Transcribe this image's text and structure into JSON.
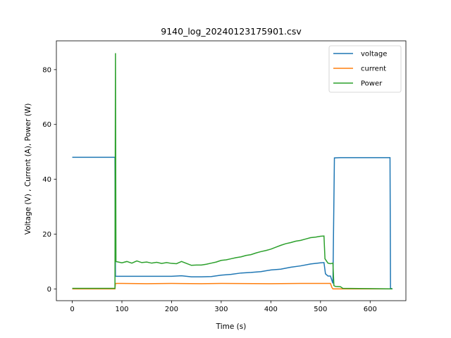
{
  "chart_data": {
    "type": "line",
    "title": "9140_log_20240123175901.csv",
    "xlabel": "Time (s)",
    "ylabel": "Voltage (V) , Current (A), Power (W)",
    "xlim": [
      -32,
      672
    ],
    "ylim": [
      -4.3,
      90.5
    ],
    "xticks": [
      0,
      100,
      200,
      300,
      400,
      500,
      600
    ],
    "yticks": [
      0,
      20,
      40,
      60,
      80
    ],
    "grid": false,
    "legend_position": "top-right",
    "series": [
      {
        "name": "voltage",
        "color": "#1f77b4",
        "points": [
          [
            0,
            48
          ],
          [
            86,
            48
          ],
          [
            87,
            4.6
          ],
          [
            100,
            4.6
          ],
          [
            150,
            4.6
          ],
          [
            200,
            4.6
          ],
          [
            220,
            4.8
          ],
          [
            240,
            4.4
          ],
          [
            260,
            4.4
          ],
          [
            280,
            4.5
          ],
          [
            300,
            5
          ],
          [
            320,
            5.3
          ],
          [
            340,
            5.8
          ],
          [
            360,
            6
          ],
          [
            380,
            6.3
          ],
          [
            400,
            6.9
          ],
          [
            420,
            7.2
          ],
          [
            440,
            7.9
          ],
          [
            460,
            8.4
          ],
          [
            480,
            9.1
          ],
          [
            500,
            9.5
          ],
          [
            507,
            9.6
          ],
          [
            510,
            5.5
          ],
          [
            515,
            4.7
          ],
          [
            520,
            4.7
          ],
          [
            525,
            2
          ],
          [
            528,
            47.8
          ],
          [
            540,
            47.9
          ],
          [
            600,
            47.9
          ],
          [
            640,
            47.9
          ],
          [
            641,
            0.2
          ],
          [
            645,
            0
          ]
        ]
      },
      {
        "name": "current",
        "color": "#ff7f0e",
        "points": [
          [
            0,
            0
          ],
          [
            86,
            0
          ],
          [
            87,
            2
          ],
          [
            100,
            2
          ],
          [
            150,
            1.9
          ],
          [
            200,
            2
          ],
          [
            260,
            1.9
          ],
          [
            300,
            2
          ],
          [
            400,
            1.9
          ],
          [
            460,
            2
          ],
          [
            520,
            2
          ],
          [
            523,
            0.5
          ],
          [
            525,
            0
          ],
          [
            645,
            0
          ]
        ]
      },
      {
        "name": "Power",
        "color": "#2ca02c",
        "points": [
          [
            0,
            0.2
          ],
          [
            86,
            0.2
          ],
          [
            87,
            86
          ],
          [
            88,
            10
          ],
          [
            100,
            9.5
          ],
          [
            110,
            10
          ],
          [
            120,
            9.4
          ],
          [
            130,
            10.2
          ],
          [
            140,
            9.6
          ],
          [
            150,
            9.8
          ],
          [
            160,
            9.4
          ],
          [
            170,
            9.7
          ],
          [
            180,
            9.3
          ],
          [
            190,
            9.6
          ],
          [
            200,
            9.3
          ],
          [
            210,
            9.2
          ],
          [
            220,
            10
          ],
          [
            230,
            9.3
          ],
          [
            240,
            8.6
          ],
          [
            250,
            8.7
          ],
          [
            260,
            8.7
          ],
          [
            270,
            9
          ],
          [
            280,
            9.4
          ],
          [
            290,
            9.8
          ],
          [
            300,
            10.4
          ],
          [
            310,
            10.6
          ],
          [
            320,
            11
          ],
          [
            330,
            11.4
          ],
          [
            340,
            11.7
          ],
          [
            350,
            12.2
          ],
          [
            360,
            12.5
          ],
          [
            370,
            13.1
          ],
          [
            380,
            13.6
          ],
          [
            390,
            14
          ],
          [
            400,
            14.5
          ],
          [
            410,
            15.2
          ],
          [
            420,
            15.9
          ],
          [
            430,
            16.5
          ],
          [
            440,
            16.9
          ],
          [
            450,
            17.4
          ],
          [
            460,
            17.7
          ],
          [
            470,
            18.2
          ],
          [
            480,
            18.7
          ],
          [
            490,
            18.9
          ],
          [
            500,
            19.2
          ],
          [
            507,
            19.3
          ],
          [
            509,
            11
          ],
          [
            515,
            9.4
          ],
          [
            520,
            9.2
          ],
          [
            525,
            9.4
          ],
          [
            527,
            1.2
          ],
          [
            530,
            0.9
          ],
          [
            540,
            0.8
          ],
          [
            545,
            0.2
          ],
          [
            600,
            0.1
          ],
          [
            645,
            0
          ]
        ]
      }
    ]
  }
}
